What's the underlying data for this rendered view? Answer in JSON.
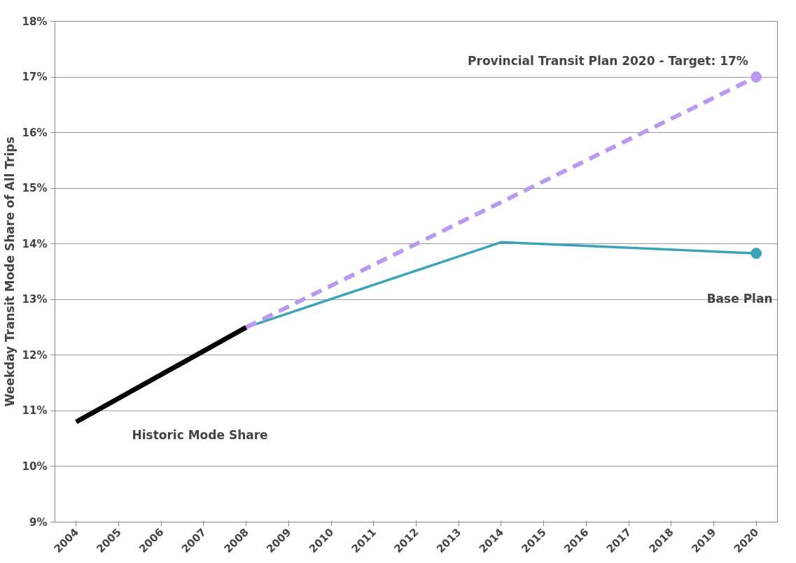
{
  "chart_data": {
    "type": "line",
    "ylabel": "Weekday Transit Mode Share of All Trips",
    "xlim": [
      2003.5,
      2020.5
    ],
    "xticks": [
      2004,
      2005,
      2006,
      2007,
      2008,
      2009,
      2010,
      2011,
      2012,
      2013,
      2014,
      2015,
      2016,
      2017,
      2018,
      2019,
      2020
    ],
    "series": [
      {
        "color": "#000000",
        "x": [
          2004,
          2008
        ],
        "values": [
          10.8,
          12.5
        ]
      },
      {
        "color": "#3ba3b8",
        "x": [
          2008,
          2014,
          2020
        ],
        "values": [
          12.5,
          14.03,
          13.83
        ]
      },
      {
        "color": "#bb99f0",
        "x": [
          2008,
          2020
        ],
        "values": [
          12.5,
          17.0
        ],
        "line_style": "dashed"
      },
      {
        "type": "scatter",
        "color": "#3ba3b8",
        "x": [
          2020
        ],
        "values": [
          13.83
        ],
        "marker": "circle"
      },
      {
        "type": "scatter",
        "color": "#bb99f0",
        "x": [
          2020
        ],
        "values": [
          17.0
        ],
        "marker": "circle"
      }
    ],
    "ylim": [
      9,
      18
    ],
    "yticks": [
      {
        "value": 9,
        "label": "9%"
      },
      {
        "value": 10,
        "label": "10%"
      },
      {
        "value": 11,
        "label": "11%"
      },
      {
        "value": 12,
        "label": "12%"
      },
      {
        "value": 13,
        "label": "13%"
      },
      {
        "value": 14,
        "label": "14%"
      },
      {
        "value": 15,
        "label": "15%"
      },
      {
        "value": 16,
        "label": "16%"
      },
      {
        "value": 17,
        "label": "17%"
      },
      {
        "value": 18,
        "label": "18%"
      }
    ],
    "grid": "y",
    "annotations": [
      "Historic Mode Share",
      "Base Plan",
      "Provincial Transit Plan 2020 - Target: 17%"
    ]
  }
}
